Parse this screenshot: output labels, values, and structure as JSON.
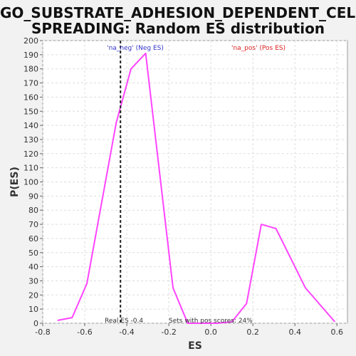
{
  "chart_data": {
    "type": "line",
    "title_line1": "GO_SUBSTRATE_ADHESION_DEPENDENT_CELL_",
    "title_line2": "SPREADING: Random ES distribution",
    "xlabel": "ES",
    "ylabel": "P(ES)",
    "xlim": [
      -0.8,
      0.65
    ],
    "ylim": [
      0,
      200
    ],
    "x_ticks": [
      "-0.8",
      "-0.6",
      "-0.4",
      "-0.2",
      "0.0",
      "0.2",
      "0.4",
      "0.6"
    ],
    "y_ticks": [
      "0",
      "10",
      "20",
      "30",
      "40",
      "50",
      "60",
      "70",
      "80",
      "90",
      "100",
      "110",
      "120",
      "130",
      "140",
      "150",
      "160",
      "170",
      "180",
      "190",
      "200"
    ],
    "grid": true,
    "series": [
      {
        "color": "#ff44ff",
        "x": [
          -0.73,
          -0.66,
          -0.59,
          -0.45,
          -0.38,
          -0.31,
          -0.18,
          -0.11,
          0.03,
          0.1,
          0.17,
          0.24,
          0.31,
          0.45,
          0.59
        ],
        "y": [
          2,
          4,
          28,
          142,
          180,
          191,
          25,
          0,
          0,
          1,
          14,
          70,
          67,
          25,
          1
        ]
      }
    ],
    "real_es": -0.43,
    "annotations": {
      "na_neg": "'na_neg' (Neg ES)",
      "na_pos": "'na_pos' (Pos ES)",
      "real_es_label": "Real ES -0.4",
      "pos_scores_label": "Sets with pos scores: 24%"
    },
    "colors": {
      "line": "#ff44ff",
      "na_neg": "#3333cc",
      "na_pos": "#dd2222",
      "real_es_line": "#222222",
      "grid": "#dddddd"
    }
  }
}
